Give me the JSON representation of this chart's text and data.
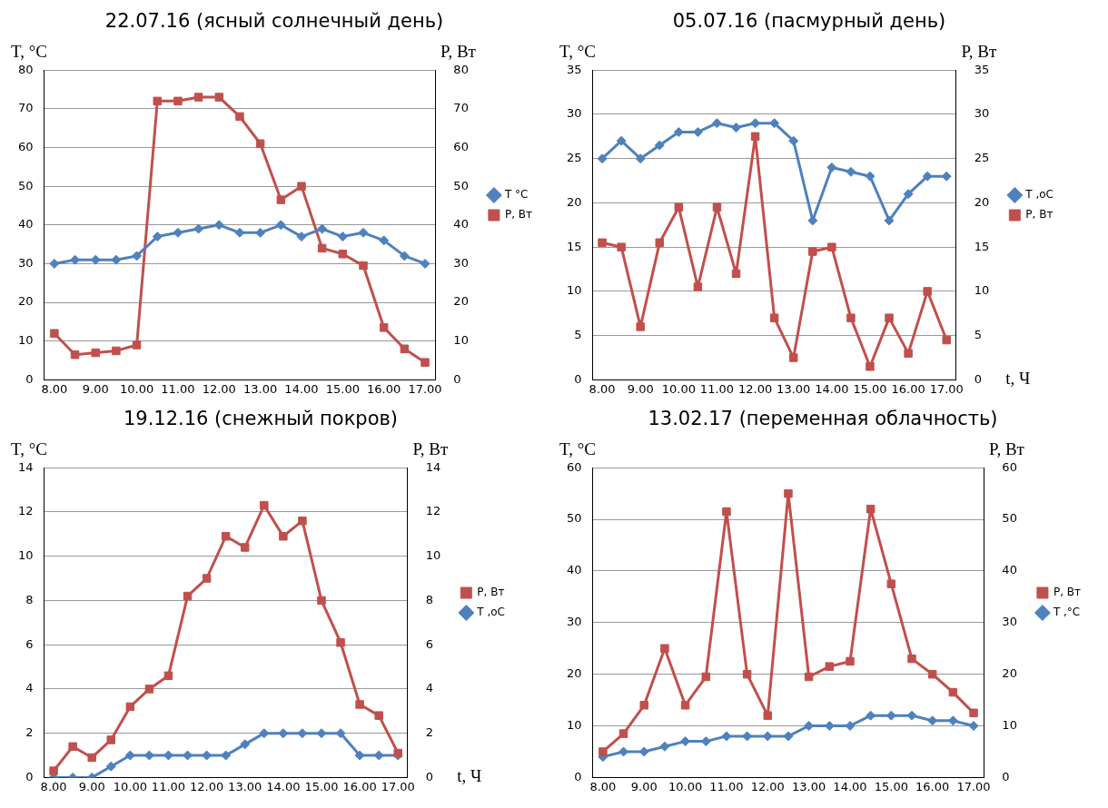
{
  "chart_data": [
    {
      "type": "line",
      "title": "22.07.16 (ясный солнечный день)",
      "ylabel": "T, °C",
      "y2label": "P, Вт",
      "categories": [
        "8.00",
        null,
        "9.00",
        null,
        "10.00",
        null,
        "11.00",
        null,
        "12.00",
        null,
        "13.00",
        null,
        "14.00",
        null,
        "15.00",
        null,
        "16.00",
        null,
        "17.00"
      ],
      "series": [
        {
          "name": "T °C",
          "color": "#4f81bd",
          "marker": "diamond",
          "values": [
            30,
            31,
            31,
            31,
            32,
            37,
            38,
            39,
            40,
            38,
            38,
            40,
            37,
            39,
            37,
            38,
            36,
            32,
            30
          ]
        },
        {
          "name": "P, Вт",
          "color": "#c0504d",
          "marker": "square",
          "values": [
            12,
            6.5,
            7,
            7.5,
            9,
            72,
            72,
            73,
            73,
            68,
            61,
            46.5,
            50,
            34,
            32.5,
            29.5,
            13.5,
            8,
            4.5
          ]
        }
      ],
      "ylim": [
        0,
        80
      ],
      "yticks": [
        0,
        10,
        20,
        30,
        40,
        50,
        60,
        70,
        80
      ],
      "y2lim": [
        0,
        80
      ],
      "y2ticks": [
        0,
        10,
        20,
        30,
        40,
        50,
        60,
        70,
        80
      ],
      "grid": "y",
      "legend": "right"
    },
    {
      "type": "line",
      "title": "05.07.16 (пасмурный день)",
      "ylabel": "T, °C",
      "y2label": "P, Вт",
      "xlabel": "t, Ч",
      "categories": [
        "8.00",
        null,
        "9.00",
        null,
        "10.00",
        null,
        "11.00",
        null,
        "12.00",
        null,
        "13.00",
        null,
        "14.00",
        null,
        "15.00",
        null,
        "16.00",
        null,
        "17.00"
      ],
      "series": [
        {
          "name": "T ,oC",
          "color": "#4f81bd",
          "marker": "diamond",
          "values": [
            25,
            27,
            25,
            26.5,
            28,
            28,
            29,
            28.5,
            29,
            29,
            27,
            18,
            24,
            23.5,
            23,
            18,
            21,
            23,
            23
          ]
        },
        {
          "name": "P, Вт",
          "color": "#c0504d",
          "marker": "square",
          "values": [
            15.5,
            15,
            6,
            15.5,
            19.5,
            10.5,
            19.5,
            12,
            27.5,
            7,
            2.5,
            14.5,
            15,
            7,
            1.5,
            7,
            3,
            10,
            4.5
          ]
        }
      ],
      "ylim": [
        0,
        35
      ],
      "yticks": [
        0,
        5,
        10,
        15,
        20,
        25,
        30,
        35
      ],
      "y2lim": [
        0,
        35
      ],
      "y2ticks": [
        0,
        5,
        10,
        15,
        20,
        25,
        30,
        35
      ],
      "grid": "y",
      "legend": "right"
    },
    {
      "type": "line",
      "title": "19.12.16 (снежный покров)",
      "ylabel": "T, °C",
      "y2label": "P, Вт",
      "xlabel": "t, Ч",
      "categories": [
        "8.00",
        null,
        "9.00",
        null,
        "10.00",
        null,
        "11.00",
        null,
        "12.00",
        null,
        "13.00",
        null,
        "14.00",
        null,
        "15.00",
        null,
        "16.00",
        null,
        "17.00"
      ],
      "series": [
        {
          "name": "P, Вт",
          "color": "#c0504d",
          "marker": "square",
          "values": [
            0.3,
            1.4,
            0.9,
            1.7,
            3.2,
            4,
            4.6,
            8.2,
            9,
            10.9,
            10.4,
            12.3,
            10.9,
            11.6,
            8,
            6.1,
            3.3,
            2.8,
            1.1
          ]
        },
        {
          "name": "T ,oC",
          "color": "#4f81bd",
          "marker": "diamond",
          "values": [
            0,
            0,
            0,
            0.5,
            1,
            1,
            1,
            1,
            1,
            1,
            1.5,
            2,
            2,
            2,
            2,
            2,
            1,
            1,
            1
          ]
        }
      ],
      "ylim": [
        0,
        14
      ],
      "yticks": [
        0,
        2,
        4,
        6,
        8,
        10,
        12,
        14
      ],
      "y2lim": [
        0,
        14
      ],
      "y2ticks": [
        0,
        2,
        4,
        6,
        8,
        10,
        12,
        14
      ],
      "grid": "y",
      "legend": "right"
    },
    {
      "type": "line",
      "title": "13.02.17 (переменная облачность)",
      "ylabel": "T, °C",
      "y2label": "P, Вт",
      "categories": [
        "8.00",
        null,
        "9.00",
        null,
        "10.00",
        null,
        "11.00",
        null,
        "12.00",
        null,
        "13.00",
        null,
        "14.00",
        null,
        "15.00",
        null,
        "16.00",
        null,
        "17.00"
      ],
      "series": [
        {
          "name": "P, Вт",
          "color": "#c0504d",
          "marker": "square",
          "values": [
            5,
            8.5,
            14,
            25,
            14,
            19.5,
            51.5,
            20,
            12,
            55,
            19.5,
            21.5,
            22.5,
            52,
            37.5,
            23,
            20,
            16.5,
            12.5
          ]
        },
        {
          "name": "T ,°C",
          "color": "#4f81bd",
          "marker": "diamond",
          "values": [
            4,
            5,
            5,
            6,
            7,
            7,
            8,
            8,
            8,
            8,
            10,
            10,
            10,
            12,
            12,
            12,
            11,
            11,
            10
          ]
        }
      ],
      "ylim": [
        0,
        60
      ],
      "yticks": [
        0,
        10,
        20,
        30,
        40,
        50,
        60
      ],
      "y2lim": [
        0,
        60
      ],
      "y2ticks": [
        0,
        10,
        20,
        30,
        40,
        50,
        60
      ],
      "grid": "y",
      "legend": "right"
    }
  ]
}
